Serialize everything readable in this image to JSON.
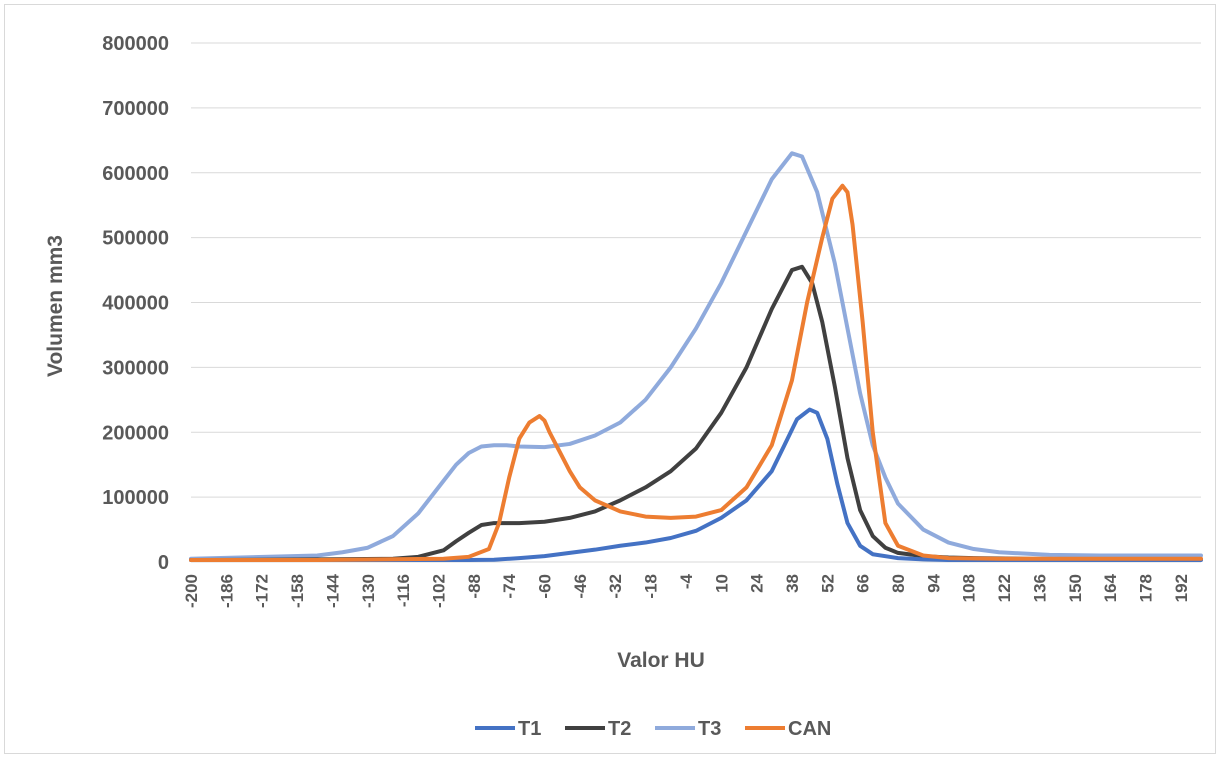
{
  "chart_data": {
    "type": "line",
    "title": "",
    "xlabel": "Valor HU",
    "ylabel": "Volumen mm3",
    "ylim": [
      0,
      800000
    ],
    "xlim": [
      -200,
      200
    ],
    "yticks": [
      0,
      100000,
      200000,
      300000,
      400000,
      500000,
      600000,
      700000,
      800000
    ],
    "ytick_labels": [
      "0",
      "100000",
      "200000",
      "300000",
      "400000",
      "500000",
      "600000",
      "700000",
      "800000"
    ],
    "xticks": [
      -200,
      -186,
      -172,
      -158,
      -144,
      -130,
      -116,
      -102,
      -88,
      -74,
      -60,
      -46,
      -32,
      -18,
      -4,
      10,
      24,
      38,
      52,
      66,
      80,
      94,
      108,
      122,
      136,
      150,
      164,
      178,
      192
    ],
    "xtick_labels": [
      "-200",
      "-186",
      "-172",
      "-158",
      "-144",
      "-130",
      "-116",
      "-102",
      "-88",
      "-74",
      "-60",
      "-46",
      "-32",
      "-18",
      "-4",
      "10",
      "24",
      "38",
      "52",
      "66",
      "80",
      "94",
      "108",
      "122",
      "136",
      "150",
      "164",
      "178",
      "192"
    ],
    "grid": true,
    "legend_position": "bottom",
    "series": [
      {
        "name": "T1",
        "color": "#4472C4",
        "x": [
          -200,
          -150,
          -100,
          -90,
          -80,
          -70,
          -60,
          -50,
          -40,
          -30,
          -20,
          -10,
          0,
          10,
          20,
          30,
          35,
          40,
          45,
          48,
          52,
          56,
          60,
          65,
          70,
          80,
          90,
          100,
          120,
          150,
          200
        ],
        "y": [
          3000,
          3000,
          3000,
          3000,
          3500,
          6000,
          9000,
          14000,
          19000,
          25000,
          30000,
          37000,
          48000,
          68000,
          95000,
          140000,
          180000,
          220000,
          235000,
          230000,
          190000,
          120000,
          60000,
          25000,
          12000,
          6000,
          4000,
          3000,
          3000,
          3000,
          3000
        ]
      },
      {
        "name": "T2",
        "color": "#404040",
        "x": [
          -200,
          -150,
          -120,
          -110,
          -100,
          -95,
          -90,
          -85,
          -80,
          -75,
          -70,
          -60,
          -50,
          -40,
          -30,
          -20,
          -10,
          0,
          10,
          20,
          30,
          38,
          42,
          46,
          50,
          55,
          60,
          65,
          70,
          75,
          80,
          90,
          100,
          110,
          130,
          160,
          200
        ],
        "y": [
          3000,
          4000,
          5000,
          8000,
          18000,
          32000,
          45000,
          57000,
          60000,
          60000,
          60000,
          62000,
          68000,
          78000,
          95000,
          115000,
          140000,
          175000,
          230000,
          300000,
          390000,
          450000,
          455000,
          430000,
          370000,
          270000,
          160000,
          80000,
          40000,
          22000,
          14000,
          9000,
          7000,
          6000,
          5000,
          4000,
          4000
        ]
      },
      {
        "name": "T3",
        "color": "#8FAADC",
        "x": [
          -200,
          -150,
          -140,
          -130,
          -120,
          -110,
          -100,
          -95,
          -90,
          -85,
          -80,
          -75,
          -70,
          -60,
          -50,
          -40,
          -30,
          -20,
          -10,
          0,
          10,
          20,
          30,
          38,
          42,
          48,
          55,
          60,
          65,
          70,
          75,
          80,
          90,
          100,
          110,
          120,
          140,
          160,
          200
        ],
        "y": [
          5000,
          10000,
          15000,
          22000,
          40000,
          75000,
          125000,
          150000,
          168000,
          178000,
          180000,
          180000,
          178000,
          177000,
          182000,
          195000,
          215000,
          250000,
          300000,
          360000,
          430000,
          510000,
          590000,
          630000,
          625000,
          570000,
          460000,
          360000,
          260000,
          180000,
          130000,
          90000,
          50000,
          30000,
          20000,
          15000,
          11000,
          10000,
          10000
        ]
      },
      {
        "name": "CAN",
        "color": "#ED7D31",
        "x": [
          -200,
          -150,
          -100,
          -90,
          -82,
          -78,
          -74,
          -70,
          -66,
          -62,
          -60,
          -58,
          -54,
          -50,
          -46,
          -40,
          -30,
          -20,
          -10,
          0,
          10,
          20,
          30,
          38,
          44,
          50,
          54,
          58,
          60,
          62,
          66,
          70,
          75,
          80,
          90,
          100,
          120,
          150,
          200
        ],
        "y": [
          3000,
          3000,
          5000,
          8000,
          20000,
          60000,
          130000,
          190000,
          215000,
          225000,
          218000,
          200000,
          170000,
          140000,
          115000,
          95000,
          78000,
          70000,
          68000,
          70000,
          80000,
          115000,
          180000,
          280000,
          400000,
          500000,
          560000,
          580000,
          570000,
          520000,
          370000,
          200000,
          60000,
          25000,
          10000,
          6000,
          5000,
          5000,
          5000
        ]
      }
    ]
  }
}
